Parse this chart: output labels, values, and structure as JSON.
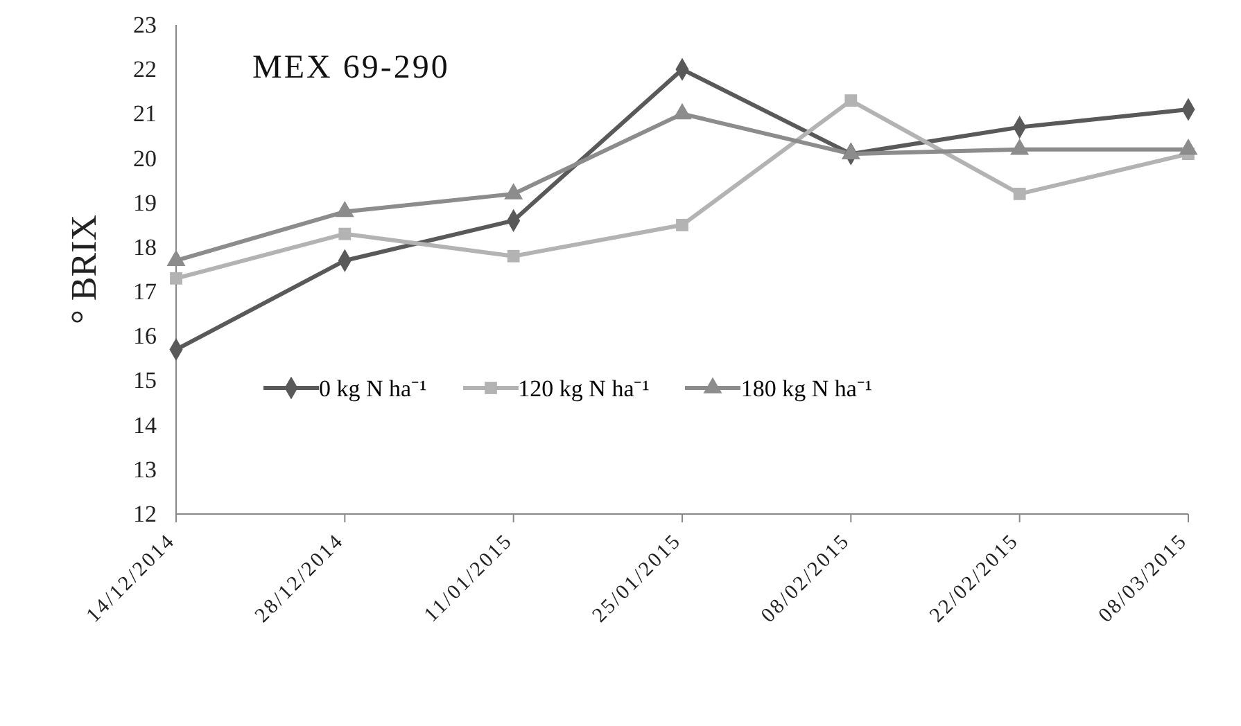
{
  "chart_data": {
    "type": "line",
    "ylabel": "° BRIX",
    "annotations": [
      "MEX 69-290"
    ],
    "categories": [
      "14/12/2014",
      "28/12/2014",
      "11/01/2015",
      "25/01/2015",
      "08/02/2015",
      "22/02/2015",
      "08/03/2015"
    ],
    "series": [
      {
        "name": "0 kg N ha⁻¹",
        "color": "#595959",
        "marker": "diamond",
        "values": [
          15.7,
          17.7,
          18.6,
          22.0,
          20.1,
          20.7,
          21.1
        ]
      },
      {
        "name": "120 kg N ha⁻¹",
        "color": "#b3b3b3",
        "marker": "square",
        "values": [
          17.3,
          18.3,
          17.8,
          18.5,
          21.3,
          19.2,
          20.1
        ]
      },
      {
        "name": "180 kg N ha⁻¹",
        "color": "#8c8c8c",
        "marker": "triangle",
        "values": [
          17.7,
          18.8,
          19.2,
          21.0,
          20.1,
          20.2,
          20.2
        ]
      }
    ],
    "ylim": [
      12,
      23
    ],
    "yticks": [
      12,
      13,
      14,
      15,
      16,
      17,
      18,
      19,
      20,
      21,
      22,
      23
    ],
    "grid": false,
    "legend": "bottom",
    "line_style": "solid"
  }
}
